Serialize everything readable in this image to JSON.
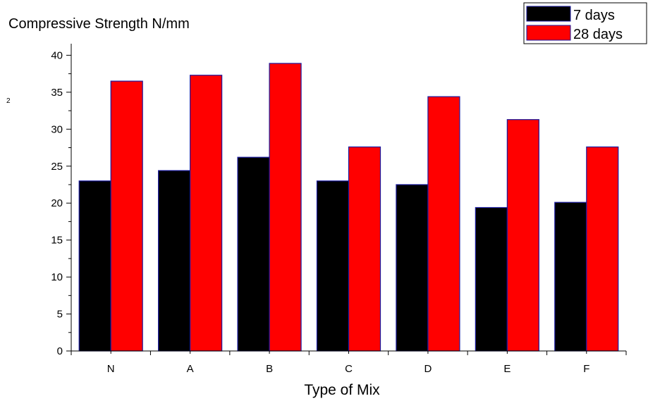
{
  "chart_data": {
    "type": "bar",
    "title": "Compressive Strength N/mm",
    "title_superscript": "2",
    "xlabel": "Type of Mix",
    "ylabel": "",
    "categories": [
      "N",
      "A",
      "B",
      "C",
      "D",
      "E",
      "F"
    ],
    "series": [
      {
        "name": "7 days",
        "color": "#000000",
        "values": [
          23.0,
          24.4,
          26.2,
          23.0,
          22.5,
          19.4,
          20.1
        ]
      },
      {
        "name": "28 days",
        "color": "#ff0000",
        "values": [
          36.5,
          37.3,
          38.9,
          27.6,
          34.4,
          31.3,
          27.6
        ]
      }
    ],
    "ylim": [
      0,
      42
    ],
    "yticks": [
      "0",
      "5",
      "10",
      "15",
      "20",
      "25",
      "30",
      "35",
      "40"
    ],
    "grid": false,
    "legend_position": "top-right",
    "bar_edge_color": "#1a1aa0"
  }
}
